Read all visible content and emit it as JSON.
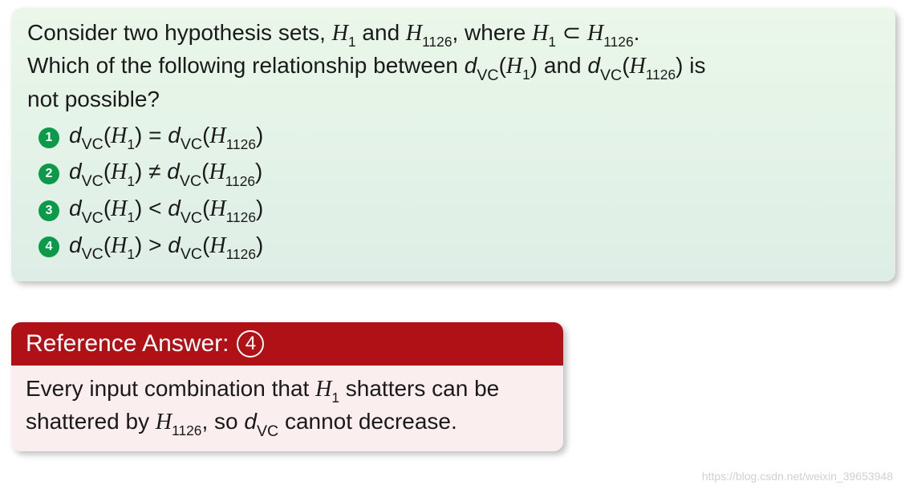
{
  "question": {
    "line1_pre": "Consider two hypothesis sets, ",
    "H": "H",
    "sub1": "1",
    "and": " and ",
    "sub1126": "1126",
    "where": ", where ",
    "subset": " ⊂ ",
    "period": ".",
    "line2": "Which of the following relationship between ",
    "d": "d",
    "VC": "VC",
    "open": "(",
    "close": ")",
    "and2": " and ",
    "is": " is",
    "line3": "not possible?"
  },
  "options": {
    "badge1": "1",
    "badge2": "2",
    "badge3": "3",
    "badge4": "4",
    "eq": " = ",
    "neq": " ≠ ",
    "lt": " < ",
    "gt": " > "
  },
  "answer": {
    "header_label": "Reference Answer:",
    "header_num": "4",
    "body_pre": "Every input combination that ",
    "body_mid": " shatters can be shattered by ",
    "body_so": ", so ",
    "body_end": " cannot decrease."
  },
  "watermark": "https://blog.csdn.net/weixin_39653948",
  "colors": {
    "question_bg_top": "#eaf7e9",
    "question_bg_bot": "#deeee6",
    "badge_bg": "#0a9a4a",
    "answer_header_bg": "#b01116",
    "answer_body_bg": "#fbeeee",
    "text": "#1a1a1a",
    "watermark": "#d0d0d0"
  },
  "fonts": {
    "body_size_pt": 21,
    "header_size_pt": 22,
    "badge_size_pt": 12
  }
}
